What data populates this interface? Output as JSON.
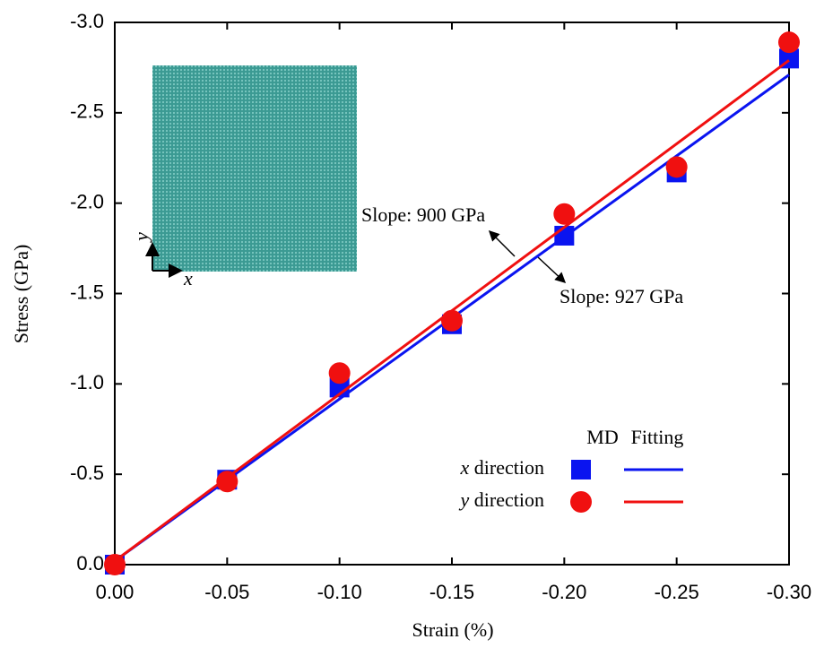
{
  "chart_data": {
    "type": "scatter",
    "x_label": "Strain (%)",
    "y_label": "Stress (GPa)",
    "x": [
      0,
      -0.05,
      -0.1,
      -0.15,
      -0.2,
      -0.25,
      -0.3
    ],
    "series": [
      {
        "name": "x direction",
        "color": "#0a14f0",
        "marker": "square",
        "values": [
          0,
          -0.47,
          -0.98,
          -1.33,
          -1.82,
          -2.17,
          -2.8
        ],
        "fit": {
          "x": [
            0,
            -0.3
          ],
          "values": [
            -0.02,
            -2.71
          ]
        }
      },
      {
        "name": "y direction",
        "color": "#f01010",
        "marker": "circle",
        "values": [
          0,
          -0.46,
          -1.06,
          -1.35,
          -1.94,
          -2.2,
          -2.89
        ],
        "fit": {
          "x": [
            0,
            -0.3
          ],
          "values": [
            -0.02,
            -2.79
          ]
        }
      }
    ],
    "legend_headers": [
      "MD",
      "Fitting"
    ],
    "annotations": [
      "Slope: 900 GPa",
      "Slope: 927 GPa"
    ],
    "inset": {
      "x_label": "x",
      "y_label": "y"
    },
    "xlim": [
      0,
      -0.3
    ],
    "ylim": [
      0,
      -3.0
    ],
    "xticks": [
      {
        "value": 0,
        "label": "0.00"
      },
      {
        "value": -0.05,
        "label": "-0.05"
      },
      {
        "value": -0.1,
        "label": "-0.10"
      },
      {
        "value": -0.15,
        "label": "-0.15"
      },
      {
        "value": -0.2,
        "label": "-0.20"
      },
      {
        "value": -0.25,
        "label": "-0.25"
      },
      {
        "value": -0.3,
        "label": "-0.30"
      }
    ],
    "yticks": [
      {
        "value": 0,
        "label": "0.0"
      },
      {
        "value": -0.5,
        "label": "-0.5"
      },
      {
        "value": -1.0,
        "label": "-1.0"
      },
      {
        "value": -1.5,
        "label": "-1.5"
      },
      {
        "value": -2.0,
        "label": "-2.0"
      },
      {
        "value": -2.5,
        "label": "-2.5"
      },
      {
        "value": -3.0,
        "label": "-3.0"
      }
    ]
  }
}
